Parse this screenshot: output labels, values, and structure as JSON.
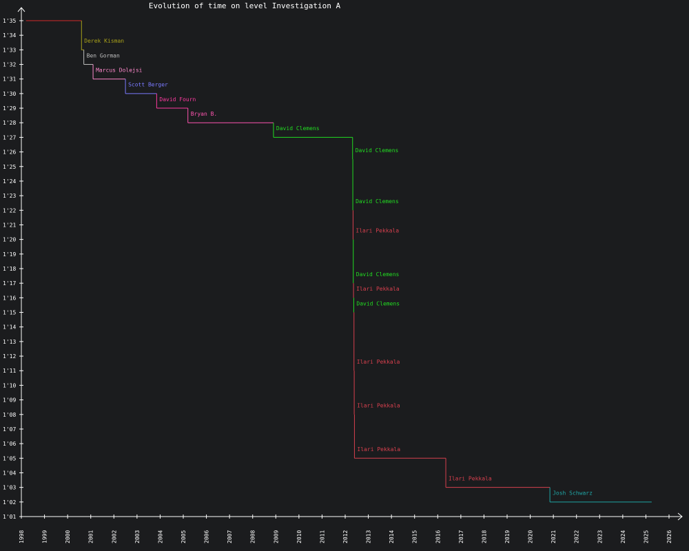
{
  "chart_data": {
    "type": "line",
    "subtype": "step",
    "title": "Evolution of time on level Investigation A",
    "xlabel": "",
    "ylabel": "",
    "xlim": [
      1998,
      2026
    ],
    "ylim": [
      62,
      96
    ],
    "x_ticks": [
      "1998",
      "1999",
      "2000",
      "2001",
      "2002",
      "2003",
      "2004",
      "2005",
      "2006",
      "2007",
      "2008",
      "2009",
      "2010",
      "2011",
      "2012",
      "2013",
      "2014",
      "2015",
      "2016",
      "2017",
      "2018",
      "2019",
      "2020",
      "2021",
      "2022",
      "2023",
      "2024",
      "2025",
      "2026"
    ],
    "y_ticks": [
      {
        "value": 62,
        "label": "1'01"
      },
      {
        "value": 63,
        "label": "1'02"
      },
      {
        "value": 64,
        "label": "1'03"
      },
      {
        "value": 65,
        "label": "1'04"
      },
      {
        "value": 66,
        "label": "1'05"
      },
      {
        "value": 67,
        "label": "1'06"
      },
      {
        "value": 68,
        "label": "1'07"
      },
      {
        "value": 69,
        "label": "1'08"
      },
      {
        "value": 70,
        "label": "1'09"
      },
      {
        "value": 71,
        "label": "1'10"
      },
      {
        "value": 72,
        "label": "1'11"
      },
      {
        "value": 73,
        "label": "1'12"
      },
      {
        "value": 74,
        "label": "1'13"
      },
      {
        "value": 75,
        "label": "1'14"
      },
      {
        "value": 76,
        "label": "1'15"
      },
      {
        "value": 77,
        "label": "1'16"
      },
      {
        "value": 78,
        "label": "1'17"
      },
      {
        "value": 79,
        "label": "1'18"
      },
      {
        "value": 80,
        "label": "1'19"
      },
      {
        "value": 81,
        "label": "1'20"
      },
      {
        "value": 82,
        "label": "1'21"
      },
      {
        "value": 83,
        "label": "1'22"
      },
      {
        "value": 84,
        "label": "1'23"
      },
      {
        "value": 85,
        "label": "1'24"
      },
      {
        "value": 86,
        "label": "1'25"
      },
      {
        "value": 87,
        "label": "1'26"
      },
      {
        "value": 88,
        "label": "1'27"
      },
      {
        "value": 89,
        "label": "1'28"
      },
      {
        "value": 90,
        "label": "1'29"
      },
      {
        "value": 91,
        "label": "1'30"
      },
      {
        "value": 92,
        "label": "1'31"
      },
      {
        "value": 93,
        "label": "1'32"
      },
      {
        "value": 94,
        "label": "1'33"
      },
      {
        "value": 95,
        "label": "1'34"
      },
      {
        "value": 96,
        "label": "1'35"
      }
    ],
    "grid": false,
    "colors": {
      "background": "#1b1c1e",
      "axis": "#ffffff",
      "text": "#ffffff"
    },
    "records": [
      {
        "holder": "",
        "x": 1998.2,
        "y": 96,
        "show_label": false,
        "color": "#d12a2a"
      },
      {
        "holder": "Derek Kisman",
        "x": 2000.6,
        "y": 94,
        "show_label": true,
        "color": "#a8a01a"
      },
      {
        "holder": "Ben Gorman",
        "x": 2000.7,
        "y": 93,
        "show_label": true,
        "color": "#bfbfbf"
      },
      {
        "holder": "Marcus Dolejsi",
        "x": 2001.1,
        "y": 92,
        "show_label": true,
        "color": "#ff88cc"
      },
      {
        "holder": "Scott Berger",
        "x": 2002.5,
        "y": 91,
        "show_label": true,
        "color": "#7a7aff"
      },
      {
        "holder": "David Fourn",
        "x": 2003.85,
        "y": 90,
        "show_label": true,
        "color": "#ff3aa0"
      },
      {
        "holder": "Bryan B.",
        "x": 2005.2,
        "y": 89,
        "show_label": true,
        "color": "#ff55b0"
      },
      {
        "holder": "David Clemens",
        "x": 2008.9,
        "y": 88,
        "show_label": true,
        "color": "#22dd22"
      },
      {
        "holder": "David Clemens",
        "x": 2012.32,
        "y": 86.5,
        "show_label": true,
        "color": "#22dd22"
      },
      {
        "holder": "David Clemens",
        "x": 2012.33,
        "y": 83,
        "show_label": true,
        "color": "#22dd22"
      },
      {
        "holder": "Ilari Pekkala",
        "x": 2012.34,
        "y": 81,
        "show_label": true,
        "color": "#d8404e"
      },
      {
        "holder": "David Clemens",
        "x": 2012.35,
        "y": 78,
        "show_label": true,
        "color": "#22dd22"
      },
      {
        "holder": "Ilari Pekkala",
        "x": 2012.36,
        "y": 77,
        "show_label": true,
        "color": "#d8404e"
      },
      {
        "holder": "David Clemens",
        "x": 2012.37,
        "y": 76,
        "show_label": true,
        "color": "#22dd22"
      },
      {
        "holder": "Ilari Pekkala",
        "x": 2012.38,
        "y": 72,
        "show_label": true,
        "color": "#d8404e"
      },
      {
        "holder": "Ilari Pekkala",
        "x": 2012.39,
        "y": 69,
        "show_label": true,
        "color": "#d8404e"
      },
      {
        "holder": "Ilari Pekkala",
        "x": 2012.4,
        "y": 66,
        "show_label": true,
        "color": "#d8404e"
      },
      {
        "holder": "Ilari Pekkala",
        "x": 2016.35,
        "y": 64,
        "show_label": true,
        "color": "#d8404e"
      },
      {
        "holder": "Josh Schwarz",
        "x": 2020.85,
        "y": 63,
        "show_label": true,
        "color": "#1fa6a6"
      }
    ],
    "end_x": 2025.25
  }
}
